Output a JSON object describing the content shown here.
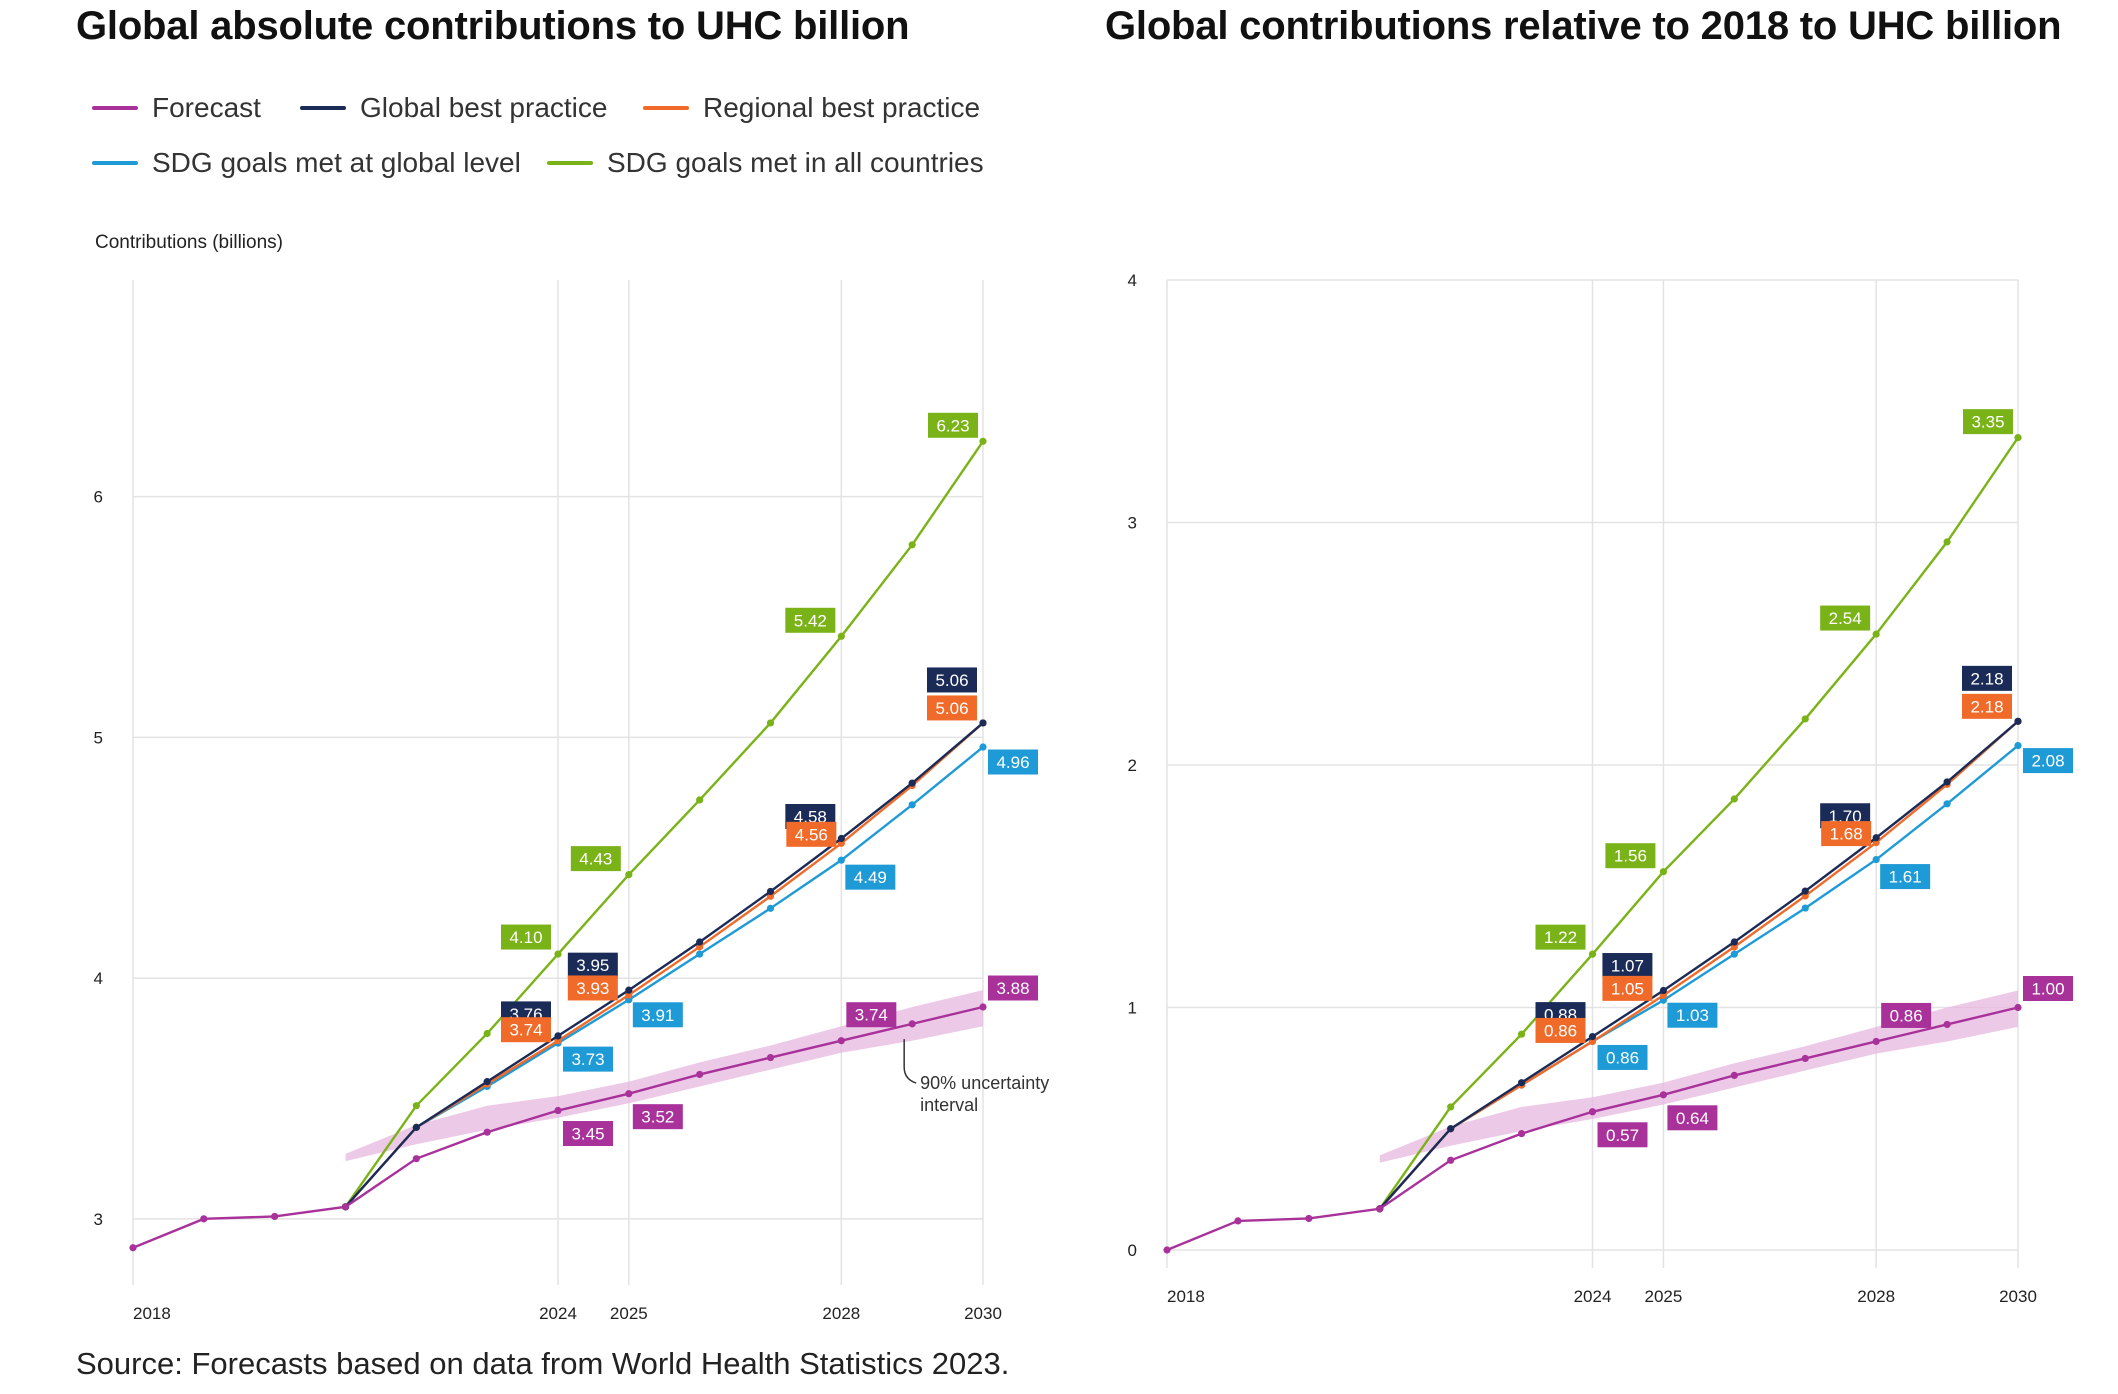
{
  "titles": {
    "left": "Global absolute contributions to UHC billion",
    "right": "Global contributions relative to 2018 to UHC billion"
  },
  "legend": [
    {
      "name": "Forecast",
      "color": "#a8329a"
    },
    {
      "name": "Global best practice",
      "color": "#1b2b57"
    },
    {
      "name": "Regional best practice",
      "color": "#f06b2a"
    },
    {
      "name": "SDG goals met at global level",
      "color": "#1e9ad6"
    },
    {
      "name": "SDG goals met in all countries",
      "color": "#7ab317"
    }
  ],
  "source": "Source: Forecasts based on data from World Health Statistics 2023.",
  "chart_data": [
    {
      "type": "line",
      "title": "Global absolute contributions to UHC billion",
      "ylabel": "Contributions (billions)",
      "xlim": [
        2018,
        2030
      ],
      "ylim": [
        2.8,
        6.9
      ],
      "yticks": [
        3,
        4,
        5,
        6
      ],
      "xticks": [
        2018,
        2024,
        2025,
        2028,
        2030
      ],
      "grid": true,
      "legend": "top",
      "annotation": "90% uncertainty interval",
      "uncertainty_band": {
        "x": [
          2021,
          2022,
          2023,
          2024,
          2025,
          2026,
          2027,
          2028,
          2029,
          2030
        ],
        "lower": [
          3.24,
          3.31,
          3.37,
          3.42,
          3.48,
          3.55,
          3.62,
          3.69,
          3.74,
          3.8
        ],
        "upper": [
          3.27,
          3.39,
          3.47,
          3.51,
          3.57,
          3.65,
          3.72,
          3.8,
          3.88,
          3.95
        ]
      },
      "series": [
        {
          "name": "Forecast",
          "color": "#a8329a",
          "x": [
            2018,
            2019,
            2020,
            2021,
            2022,
            2023,
            2024,
            2025,
            2026,
            2027,
            2028,
            2029,
            2030
          ],
          "values": [
            2.88,
            3.0,
            3.01,
            3.05,
            3.25,
            3.36,
            3.45,
            3.52,
            3.6,
            3.67,
            3.74,
            3.81,
            3.88
          ],
          "labels": [
            {
              "x": 2024,
              "text": "3.45"
            },
            {
              "x": 2025,
              "text": "3.52"
            },
            {
              "x": 2028,
              "text": "3.74"
            },
            {
              "x": 2030,
              "text": "3.88"
            }
          ]
        },
        {
          "name": "Global best practice",
          "color": "#1b2b57",
          "x": [
            2021,
            2022,
            2023,
            2024,
            2025,
            2026,
            2027,
            2028,
            2029,
            2030
          ],
          "values": [
            3.05,
            3.38,
            3.57,
            3.76,
            3.95,
            4.15,
            4.36,
            4.58,
            4.81,
            5.06
          ],
          "labels": [
            {
              "x": 2024,
              "text": "3.76"
            },
            {
              "x": 2025,
              "text": "3.95"
            },
            {
              "x": 2028,
              "text": "4.58"
            },
            {
              "x": 2030,
              "text": "5.06"
            }
          ]
        },
        {
          "name": "Regional best practice",
          "color": "#f06b2a",
          "x": [
            2021,
            2022,
            2023,
            2024,
            2025,
            2026,
            2027,
            2028,
            2029,
            2030
          ],
          "values": [
            3.05,
            3.38,
            3.56,
            3.74,
            3.93,
            4.13,
            4.34,
            4.56,
            4.8,
            5.06
          ],
          "labels": [
            {
              "x": 2024,
              "text": "3.74"
            },
            {
              "x": 2025,
              "text": "3.93"
            },
            {
              "x": 2028,
              "text": "4.56"
            },
            {
              "x": 2030,
              "text": "5.06"
            }
          ]
        },
        {
          "name": "SDG goals met at global level",
          "color": "#1e9ad6",
          "x": [
            2021,
            2022,
            2023,
            2024,
            2025,
            2026,
            2027,
            2028,
            2029,
            2030
          ],
          "values": [
            3.05,
            3.38,
            3.55,
            3.73,
            3.91,
            4.1,
            4.29,
            4.49,
            4.72,
            4.96
          ],
          "labels": [
            {
              "x": 2024,
              "text": "3.73"
            },
            {
              "x": 2025,
              "text": "3.91"
            },
            {
              "x": 2028,
              "text": "4.49"
            },
            {
              "x": 2030,
              "text": "4.96"
            }
          ]
        },
        {
          "name": "SDG goals met in all countries",
          "color": "#7ab317",
          "x": [
            2021,
            2022,
            2023,
            2024,
            2025,
            2026,
            2027,
            2028,
            2029,
            2030
          ],
          "values": [
            3.05,
            3.47,
            3.77,
            4.1,
            4.43,
            4.74,
            5.06,
            5.42,
            5.8,
            6.23
          ],
          "labels": [
            {
              "x": 2024,
              "text": "4.10"
            },
            {
              "x": 2025,
              "text": "4.43"
            },
            {
              "x": 2028,
              "text": "5.42"
            },
            {
              "x": 2030,
              "text": "6.23"
            }
          ]
        }
      ]
    },
    {
      "type": "line",
      "title": "Global contributions relative to 2018 to UHC billion",
      "ylabel": "",
      "xlim": [
        2018,
        2030
      ],
      "ylim": [
        0,
        4
      ],
      "yticks": [
        0,
        1,
        2,
        3,
        4
      ],
      "xticks": [
        2018,
        2024,
        2025,
        2028,
        2030
      ],
      "grid": true,
      "uncertainty_band": {
        "x": [
          2021,
          2022,
          2023,
          2024,
          2025,
          2026,
          2027,
          2028,
          2029,
          2030
        ],
        "lower": [
          0.36,
          0.43,
          0.49,
          0.54,
          0.6,
          0.67,
          0.74,
          0.81,
          0.86,
          0.92
        ],
        "upper": [
          0.39,
          0.51,
          0.59,
          0.63,
          0.69,
          0.77,
          0.84,
          0.92,
          1.0,
          1.07
        ]
      },
      "series": [
        {
          "name": "Forecast",
          "color": "#a8329a",
          "x": [
            2018,
            2019,
            2020,
            2021,
            2022,
            2023,
            2024,
            2025,
            2026,
            2027,
            2028,
            2029,
            2030
          ],
          "values": [
            0.0,
            0.12,
            0.13,
            0.17,
            0.37,
            0.48,
            0.57,
            0.64,
            0.72,
            0.79,
            0.86,
            0.93,
            1.0
          ],
          "labels": [
            {
              "x": 2024,
              "text": "0.57"
            },
            {
              "x": 2025,
              "text": "0.64"
            },
            {
              "x": 2028,
              "text": "0.86"
            },
            {
              "x": 2030,
              "text": "1.00"
            }
          ]
        },
        {
          "name": "Global best practice",
          "color": "#1b2b57",
          "x": [
            2021,
            2022,
            2023,
            2024,
            2025,
            2026,
            2027,
            2028,
            2029,
            2030
          ],
          "values": [
            0.17,
            0.5,
            0.69,
            0.88,
            1.07,
            1.27,
            1.48,
            1.7,
            1.93,
            2.18
          ],
          "labels": [
            {
              "x": 2024,
              "text": "0.88"
            },
            {
              "x": 2025,
              "text": "1.07"
            },
            {
              "x": 2028,
              "text": "1.70"
            },
            {
              "x": 2030,
              "text": "2.18"
            }
          ]
        },
        {
          "name": "Regional best practice",
          "color": "#f06b2a",
          "x": [
            2021,
            2022,
            2023,
            2024,
            2025,
            2026,
            2027,
            2028,
            2029,
            2030
          ],
          "values": [
            0.17,
            0.5,
            0.68,
            0.86,
            1.05,
            1.25,
            1.46,
            1.68,
            1.92,
            2.18
          ],
          "labels": [
            {
              "x": 2024,
              "text": "0.86"
            },
            {
              "x": 2025,
              "text": "1.05"
            },
            {
              "x": 2028,
              "text": "1.68"
            },
            {
              "x": 2030,
              "text": "2.18"
            }
          ]
        },
        {
          "name": "SDG goals met at global level",
          "color": "#1e9ad6",
          "x": [
            2021,
            2022,
            2023,
            2024,
            2025,
            2026,
            2027,
            2028,
            2029,
            2030
          ],
          "values": [
            0.17,
            0.5,
            0.68,
            0.86,
            1.03,
            1.22,
            1.41,
            1.61,
            1.84,
            2.08
          ],
          "labels": [
            {
              "x": 2024,
              "text": "0.86"
            },
            {
              "x": 2025,
              "text": "1.03"
            },
            {
              "x": 2028,
              "text": "1.61"
            },
            {
              "x": 2030,
              "text": "2.08"
            }
          ]
        },
        {
          "name": "SDG goals met in all countries",
          "color": "#7ab317",
          "x": [
            2021,
            2022,
            2023,
            2024,
            2025,
            2026,
            2027,
            2028,
            2029,
            2030
          ],
          "values": [
            0.17,
            0.59,
            0.89,
            1.22,
            1.56,
            1.86,
            2.19,
            2.54,
            2.92,
            3.35
          ],
          "labels": [
            {
              "x": 2024,
              "text": "1.22"
            },
            {
              "x": 2025,
              "text": "1.56"
            },
            {
              "x": 2028,
              "text": "2.54"
            },
            {
              "x": 2030,
              "text": "3.35"
            }
          ]
        }
      ]
    }
  ]
}
